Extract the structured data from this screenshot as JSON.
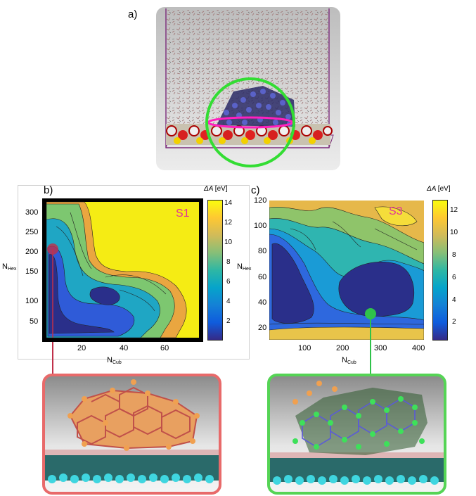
{
  "panel_a": {
    "label": "a)"
  },
  "panel_b": {
    "label": "b)",
    "map_label": "S1",
    "cbar_title_sym": "ΔA",
    "cbar_title_unit": "[eV]",
    "cbar_ticks": [
      "14",
      "12",
      "10",
      "8",
      "6",
      "4",
      "2"
    ],
    "x_ticks": [
      "20",
      "40",
      "60"
    ],
    "y_ticks": [
      "300",
      "250",
      "200",
      "150",
      "100",
      "50"
    ],
    "xlabel_main": "N",
    "xlabel_sub": "Cub",
    "ylabel_main": "N",
    "ylabel_sub": "Hex"
  },
  "panel_c": {
    "label": "c)",
    "map_label": "S3",
    "cbar_title_sym": "ΔA",
    "cbar_title_unit": "[eV]",
    "cbar_ticks": [
      "12",
      "10",
      "8",
      "6",
      "4",
      "2"
    ],
    "x_ticks": [
      "100",
      "200",
      "300",
      "400"
    ],
    "y_ticks": [
      "120",
      "100",
      "80",
      "60",
      "40",
      "20"
    ],
    "xlabel_main": "N",
    "xlabel_sub": "Cub",
    "ylabel_main": "N",
    "ylabel_sub": "Hex"
  },
  "colors": {
    "marker_b": "#c0304a",
    "marker_c": "#2fc24a",
    "frame_b": "#e86a6a",
    "frame_c": "#55d455",
    "tag": "#e0339a"
  }
}
